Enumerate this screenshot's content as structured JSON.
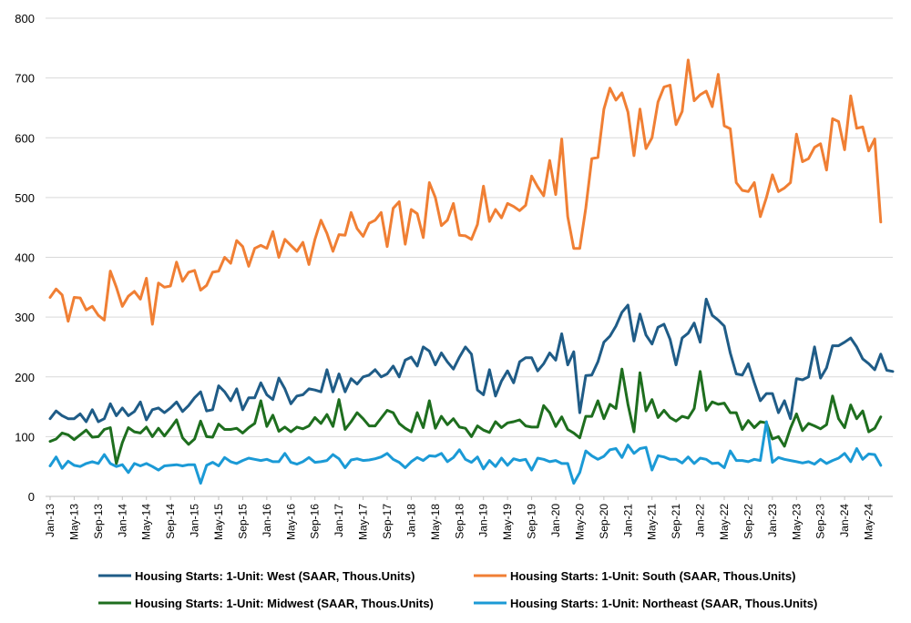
{
  "chart_data": {
    "type": "line",
    "title": "",
    "xlabel": "",
    "ylabel": "",
    "ylim": [
      0,
      800
    ],
    "yticks": [
      0,
      100,
      200,
      300,
      400,
      500,
      600,
      700,
      800
    ],
    "grid": true,
    "legend_position": "bottom",
    "start": "Jan-13",
    "x_tick_labels": [
      "Jan-13",
      "May-13",
      "Sep-13",
      "Jan-14",
      "May-14",
      "Sep-14",
      "Jan-15",
      "May-15",
      "Sep-15",
      "Jan-16",
      "May-16",
      "Sep-16",
      "Jan-17",
      "May-17",
      "Sep-17",
      "Jan-18",
      "May-18",
      "Sep-18",
      "Jan-19",
      "May-19",
      "Sep-19",
      "Jan-20",
      "May-20",
      "Sep-20",
      "Jan-21",
      "May-21",
      "Sep-21",
      "Jan-22",
      "May-22",
      "Sep-22",
      "Jan-23",
      "May-23",
      "Sep-23",
      "Jan-24",
      "May-24"
    ],
    "series": [
      {
        "name": "Housing Starts: 1-Unit: West (SAAR, Thous.Units)",
        "color": "#1f5c87",
        "values": [
          130,
          143,
          135,
          130,
          130,
          138,
          125,
          145,
          125,
          130,
          155,
          135,
          148,
          135,
          142,
          158,
          128,
          145,
          148,
          140,
          148,
          158,
          142,
          152,
          165,
          175,
          143,
          145,
          185,
          175,
          160,
          180,
          145,
          165,
          165,
          190,
          170,
          162,
          198,
          180,
          155,
          168,
          170,
          180,
          178,
          175,
          212,
          175,
          205,
          175,
          197,
          188,
          200,
          203,
          212,
          200,
          205,
          218,
          200,
          228,
          233,
          218,
          250,
          243,
          220,
          240,
          225,
          213,
          233,
          250,
          238,
          178,
          170,
          212,
          168,
          193,
          210,
          190,
          225,
          232,
          232,
          210,
          222,
          240,
          228,
          272,
          220,
          242,
          140,
          202,
          203,
          225,
          258,
          268,
          285,
          308,
          320,
          260,
          305,
          270,
          255,
          283,
          288,
          263,
          220,
          265,
          273,
          290,
          258,
          330,
          303,
          295,
          285,
          240,
          205,
          203,
          222,
          190,
          160,
          172,
          172,
          140,
          160,
          130,
          197,
          195,
          200,
          250,
          198,
          215,
          252,
          252,
          258,
          265,
          250,
          230,
          222,
          212,
          238,
          211,
          209
        ]
      },
      {
        "name": "Housing Starts: 1-Unit: South (SAAR, Thous.Units)",
        "color": "#f07f34",
        "values": [
          333,
          347,
          337,
          293,
          333,
          332,
          312,
          318,
          303,
          295,
          377,
          350,
          318,
          335,
          343,
          330,
          365,
          288,
          357,
          350,
          352,
          392,
          360,
          375,
          378,
          345,
          353,
          375,
          377,
          400,
          390,
          428,
          418,
          385,
          415,
          420,
          415,
          443,
          400,
          430,
          420,
          410,
          425,
          388,
          430,
          462,
          440,
          410,
          438,
          437,
          475,
          448,
          435,
          457,
          462,
          475,
          418,
          482,
          493,
          422,
          480,
          473,
          433,
          525,
          500,
          453,
          462,
          490,
          437,
          436,
          430,
          455,
          519,
          460,
          480,
          466,
          490,
          485,
          478,
          487,
          536,
          518,
          503,
          562,
          505,
          598,
          468,
          415,
          415,
          482,
          565,
          567,
          648,
          683,
          663,
          675,
          643,
          570,
          648,
          582,
          600,
          660,
          685,
          688,
          622,
          644,
          730,
          662,
          672,
          678,
          652,
          706,
          620,
          615,
          525,
          512,
          510,
          525,
          468,
          500,
          538,
          510,
          516,
          525,
          606,
          560,
          565,
          584,
          590,
          546,
          632,
          627,
          580,
          670,
          616,
          618,
          578,
          598,
          459
        ]
      },
      {
        "name": "Housing Starts: 1-Unit: Midwest (SAAR, Thous.Units)",
        "color": "#1e6e1e",
        "values": [
          92,
          96,
          106,
          103,
          95,
          103,
          111,
          99,
          100,
          112,
          115,
          55,
          90,
          115,
          108,
          106,
          116,
          100,
          114,
          101,
          114,
          128,
          98,
          87,
          96,
          126,
          100,
          99,
          121,
          112,
          112,
          114,
          106,
          115,
          122,
          160,
          117,
          136,
          109,
          116,
          108,
          116,
          113,
          118,
          132,
          122,
          137,
          117,
          162,
          112,
          125,
          140,
          130,
          118,
          118,
          131,
          144,
          140,
          122,
          114,
          108,
          140,
          115,
          160,
          114,
          134,
          120,
          130,
          116,
          114,
          100,
          118,
          111,
          107,
          125,
          115,
          123,
          125,
          128,
          118,
          116,
          116,
          152,
          140,
          117,
          133,
          112,
          106,
          98,
          134,
          134,
          160,
          130,
          154,
          147,
          213,
          154,
          108,
          207,
          143,
          162,
          132,
          144,
          132,
          126,
          134,
          131,
          147,
          209,
          144,
          158,
          154,
          156,
          140,
          140,
          112,
          127,
          115,
          125,
          123,
          96,
          100,
          84,
          114,
          138,
          110,
          122,
          118,
          113,
          120,
          168,
          130,
          115,
          153,
          130,
          143,
          108,
          114,
          133
        ]
      },
      {
        "name": "Housing Starts: 1-Unit: Northeast (SAAR, Thous.Units)",
        "color": "#1b9ad6",
        "values": [
          51,
          66,
          47,
          59,
          52,
          50,
          55,
          58,
          55,
          70,
          55,
          50,
          53,
          40,
          55,
          51,
          55,
          50,
          44,
          51,
          52,
          53,
          51,
          53,
          53,
          22,
          52,
          57,
          51,
          65,
          58,
          55,
          60,
          64,
          62,
          60,
          62,
          58,
          58,
          72,
          57,
          54,
          58,
          65,
          57,
          58,
          60,
          70,
          63,
          48,
          61,
          63,
          60,
          61,
          63,
          66,
          72,
          62,
          57,
          48,
          58,
          65,
          60,
          68,
          67,
          72,
          58,
          65,
          78,
          62,
          57,
          66,
          46,
          60,
          50,
          64,
          52,
          63,
          60,
          62,
          44,
          64,
          62,
          58,
          60,
          55,
          55,
          22,
          40,
          76,
          68,
          62,
          67,
          78,
          80,
          65,
          86,
          72,
          80,
          82,
          44,
          68,
          66,
          62,
          62,
          56,
          66,
          55,
          64,
          62,
          55,
          56,
          48,
          76,
          60,
          60,
          58,
          62,
          60,
          125,
          57,
          65,
          62,
          60,
          58,
          56,
          58,
          54,
          62,
          55,
          60,
          64,
          72,
          58,
          80,
          62,
          71,
          70,
          52
        ]
      }
    ]
  }
}
